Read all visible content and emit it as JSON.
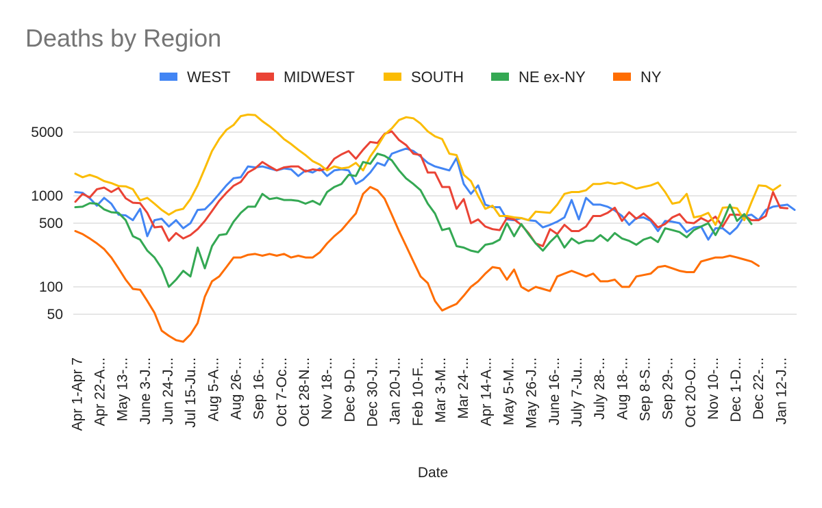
{
  "chart_data": {
    "type": "line",
    "title": "Deaths by Region",
    "xlabel": "Date",
    "ylabel": "",
    "yscale": "log",
    "ylim": [
      16,
      10000
    ],
    "yticks": [
      50,
      100,
      500,
      1000,
      5000
    ],
    "grid": true,
    "legend_position": "top",
    "x_tick_labels": [
      "Apr 1-Apr 7",
      "Apr 22-A...",
      "May 13-...",
      "June 3-J...",
      "Jun 24-J...",
      "Jul 15-Ju...",
      "Aug 5-A...",
      "Aug 26-...",
      "Sep 16-...",
      "Oct 7-Oc...",
      "Oct 28-N...",
      "Nov 18-...",
      "Dec 9-D...",
      "Dec 30-J...",
      "Jan 20-J...",
      "Feb 10-F...",
      "Mar 3-M...",
      "Mar 24-...",
      "Apr 14-A...",
      "May 5-M...",
      "May 26-J...",
      "June 16-...",
      "July 7-Ju...",
      "July 28-...",
      "Aug 18-...",
      "Sep 8-S...",
      "Sep 29-...",
      "Oct 20-O...",
      "Nov 10-...",
      "Dec 1-D...",
      "Dec 22-...",
      "Jan 12-J..."
    ],
    "series": [
      {
        "name": "WEST",
        "color": "#4285F4",
        "values": [
          1100,
          1080,
          940,
          780,
          950,
          820,
          620,
          610,
          540,
          720,
          360,
          540,
          560,
          460,
          540,
          440,
          500,
          700,
          710,
          850,
          1050,
          1300,
          1560,
          1600,
          2100,
          2050,
          2100,
          2000,
          1900,
          2000,
          1950,
          1650,
          1900,
          1800,
          2000,
          1650,
          1900,
          1950,
          1900,
          1350,
          1500,
          1800,
          2300,
          2150,
          2900,
          3100,
          3300,
          3100,
          2700,
          2300,
          2100,
          2000,
          1900,
          2600,
          1350,
          1050,
          1300,
          800,
          750,
          750,
          550,
          540,
          570,
          540,
          530,
          450,
          480,
          520,
          580,
          900,
          550,
          950,
          800,
          800,
          760,
          690,
          600,
          480,
          570,
          580,
          530,
          410,
          530,
          520,
          500,
          400,
          450,
          460,
          330,
          440,
          440,
          380,
          450,
          600,
          620,
          540,
          700,
          760,
          780,
          800,
          700
        ]
      },
      {
        "name": "MIDWEST",
        "color": "#EA4335",
        "values": [
          860,
          1050,
          960,
          1180,
          1230,
          1100,
          1220,
          940,
          840,
          830,
          650,
          450,
          460,
          320,
          390,
          340,
          370,
          430,
          530,
          680,
          880,
          1080,
          1290,
          1420,
          1800,
          2000,
          2350,
          2100,
          1900,
          2050,
          2100,
          2100,
          1850,
          1950,
          1900,
          2000,
          2550,
          2850,
          3100,
          2550,
          3200,
          3900,
          3800,
          4800,
          5100,
          4100,
          3600,
          2900,
          2800,
          1800,
          1800,
          1250,
          1250,
          720,
          920,
          500,
          550,
          460,
          430,
          420,
          570,
          550,
          480,
          390,
          300,
          280,
          430,
          380,
          480,
          410,
          410,
          460,
          600,
          600,
          650,
          740,
          530,
          660,
          560,
          640,
          550,
          450,
          490,
          580,
          630,
          510,
          500,
          570,
          520,
          590,
          460,
          620,
          620,
          610,
          540,
          540,
          600,
          1100,
          740,
          730
        ]
      },
      {
        "name": "SOUTH",
        "color": "#FBBC04",
        "values": [
          1750,
          1600,
          1700,
          1600,
          1450,
          1380,
          1280,
          1270,
          1180,
          890,
          950,
          820,
          700,
          620,
          690,
          720,
          920,
          1300,
          2000,
          3100,
          4200,
          5300,
          6000,
          7500,
          7800,
          7700,
          6600,
          5800,
          5000,
          4200,
          3700,
          3200,
          2800,
          2400,
          2200,
          1900,
          2100,
          2000,
          2050,
          2300,
          1900,
          2700,
          3500,
          4700,
          5500,
          6800,
          7300,
          7100,
          6200,
          5100,
          4500,
          4200,
          2900,
          2800,
          1700,
          1450,
          1000,
          720,
          780,
          600,
          600,
          580,
          570,
          540,
          670,
          660,
          650,
          800,
          1050,
          1100,
          1100,
          1150,
          1350,
          1350,
          1400,
          1350,
          1400,
          1300,
          1200,
          1250,
          1300,
          1400,
          1100,
          820,
          850,
          1050,
          580,
          600,
          650,
          480,
          740,
          750,
          730,
          540,
          850,
          1300,
          1280,
          1150,
          1300
        ]
      },
      {
        "name": "NE ex-NY",
        "color": "#34A853",
        "values": [
          750,
          760,
          830,
          820,
          710,
          660,
          650,
          540,
          360,
          330,
          250,
          210,
          160,
          100,
          120,
          150,
          130,
          270,
          160,
          280,
          370,
          380,
          520,
          650,
          760,
          760,
          1050,
          920,
          950,
          900,
          900,
          880,
          820,
          880,
          800,
          1100,
          1250,
          1350,
          1700,
          1650,
          2350,
          2250,
          2900,
          2750,
          2450,
          1900,
          1550,
          1350,
          1150,
          820,
          640,
          420,
          440,
          280,
          270,
          250,
          240,
          290,
          300,
          330,
          500,
          360,
          490,
          380,
          300,
          250,
          310,
          370,
          270,
          340,
          300,
          320,
          320,
          370,
          320,
          390,
          340,
          320,
          290,
          330,
          350,
          310,
          440,
          420,
          400,
          350,
          420,
          460,
          500,
          370,
          520,
          800,
          530,
          630,
          490
        ]
      },
      {
        "name": "NY",
        "color": "#FF6D01",
        "values": [
          410,
          380,
          340,
          300,
          260,
          210,
          160,
          120,
          95,
          93,
          70,
          52,
          33,
          29,
          26,
          25,
          30,
          40,
          78,
          115,
          130,
          165,
          210,
          210,
          225,
          230,
          220,
          230,
          220,
          230,
          210,
          220,
          210,
          210,
          240,
          300,
          360,
          420,
          520,
          640,
          1050,
          1250,
          1150,
          930,
          620,
          410,
          280,
          190,
          130,
          110,
          70,
          55,
          60,
          65,
          80,
          100,
          115,
          140,
          165,
          160,
          120,
          155,
          100,
          90,
          100,
          95,
          90,
          130,
          140,
          150,
          140,
          130,
          140,
          115,
          115,
          120,
          100,
          100,
          130,
          135,
          140,
          165,
          170,
          160,
          150,
          145,
          145,
          190,
          200,
          210,
          210,
          220,
          210,
          200,
          190,
          170
        ]
      }
    ]
  }
}
